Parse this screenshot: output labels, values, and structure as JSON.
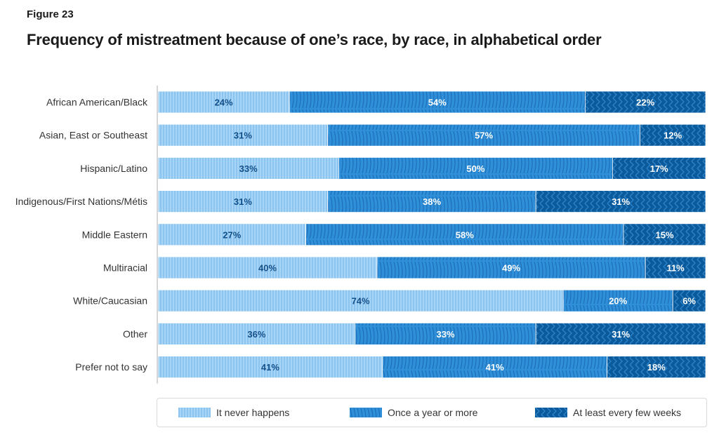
{
  "figure_label": "Figure 23",
  "title": "Frequency of mistreatment because of one’s race, by race, in alphabetical order",
  "colors": {
    "never": "#a8d4f5",
    "never_stripe": "#6fb3ea",
    "yearly": "#2f8fd8",
    "yearly_stripe": "#1c6fb8",
    "weeks": "#0b5a9c",
    "weeks_stripe": "#2d84c9",
    "label_dark": "#12508a",
    "label_light": "#ffffff",
    "axis": "#bbbbbb"
  },
  "chart_data": {
    "type": "bar",
    "orientation": "horizontal",
    "stacked": true,
    "percent_stacked": true,
    "categories": [
      "African American/Black",
      "Asian, East or Southeast",
      "Hispanic/Latino",
      "Indigenous/First Nations/Métis",
      "Middle Eastern",
      "Multiracial",
      "White/Caucasian",
      "Other",
      "Prefer not to say"
    ],
    "series": [
      {
        "name": "It never happens",
        "values": [
          24,
          31,
          33,
          31,
          27,
          40,
          74,
          36,
          41
        ]
      },
      {
        "name": "Once a year or more",
        "values": [
          54,
          57,
          50,
          38,
          58,
          49,
          20,
          33,
          41
        ]
      },
      {
        "name": "At least every few weeks",
        "values": [
          22,
          12,
          17,
          31,
          15,
          11,
          6,
          31,
          18
        ]
      }
    ],
    "value_suffix": "%",
    "legend_position": "bottom",
    "grid": false
  }
}
